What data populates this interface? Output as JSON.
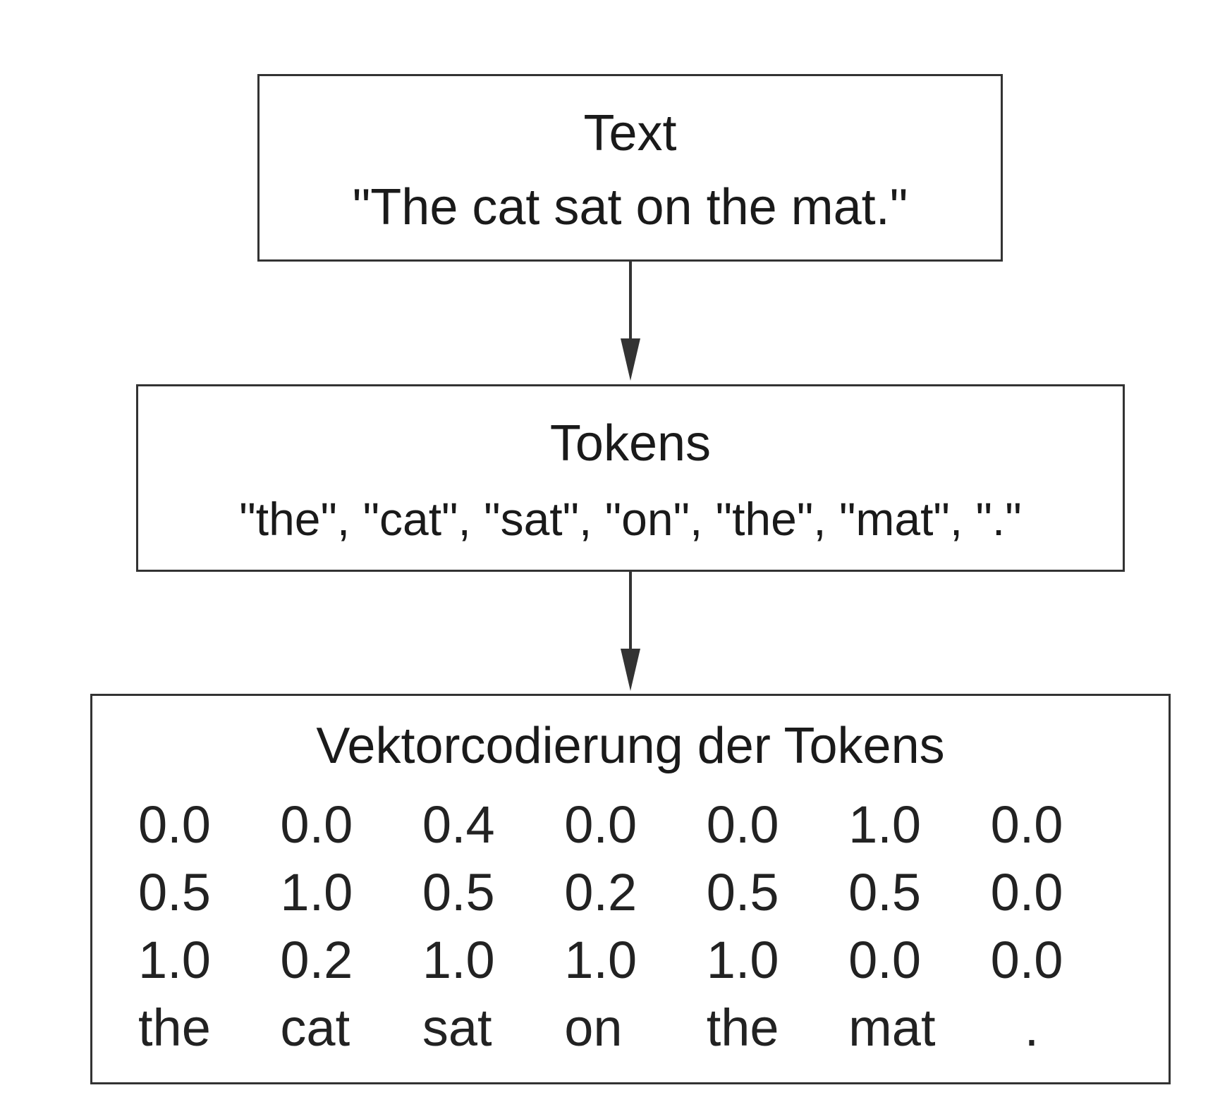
{
  "text_box": {
    "title": "Text",
    "content": "\"The cat sat on the mat.\""
  },
  "tokens_box": {
    "title": "Tokens",
    "content": "\"the\", \"cat\", \"sat\", \"on\", \"the\", \"mat\", \".\""
  },
  "vector_box": {
    "title": "Vektorcodierung der Tokens",
    "rows": [
      [
        "0.0",
        "0.0",
        "0.4",
        "0.0",
        "0.0",
        "1.0",
        "0.0"
      ],
      [
        "0.5",
        "1.0",
        "0.5",
        "0.2",
        "0.5",
        "0.5",
        "0.0"
      ],
      [
        "1.0",
        "0.2",
        "1.0",
        "1.0",
        "1.0",
        "0.0",
        "0.0"
      ]
    ],
    "tokens": [
      "the",
      "cat",
      "sat",
      "on",
      "the",
      "mat",
      "."
    ]
  },
  "colors": {
    "border": "#333333",
    "text": "#1a1a1a",
    "background": "#ffffff"
  }
}
